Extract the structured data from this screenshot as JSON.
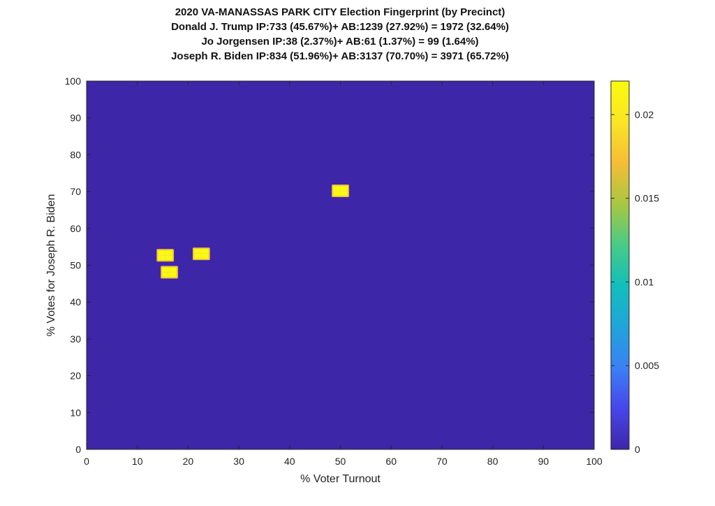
{
  "chart_data": {
    "type": "heatmap",
    "title_lines": [
      "2020 VA-MANASSAS PARK CITY Election Fingerprint (by Precinct)",
      "Donald J. Trump IP:733 (45.67%)+ AB:1239 (27.92%) = 1972 (32.64%)",
      "Jo Jorgensen IP:38 (2.37%)+ AB:61 (1.37%) = 99 (1.64%)",
      "Joseph R. Biden IP:834 (51.96%)+ AB:3137 (70.70%) = 3971 (65.72%)"
    ],
    "xlabel": "% Voter Turnout",
    "ylabel": "% Votes for Joseph R. Biden",
    "xlim": [
      0,
      100
    ],
    "ylim": [
      0,
      100
    ],
    "xticks": [
      0,
      10,
      20,
      30,
      40,
      50,
      60,
      70,
      80,
      90,
      100
    ],
    "yticks": [
      0,
      10,
      20,
      30,
      40,
      50,
      60,
      70,
      80,
      90,
      100
    ],
    "background_value": 0,
    "colorbar": {
      "min": 0,
      "max": 0.022,
      "ticks": [
        0,
        0.005,
        0.01,
        0.015,
        0.02
      ],
      "tick_labels": [
        "0",
        "0.005",
        "0.01",
        "0.015",
        "0.02"
      ],
      "colormap": [
        "#3e26a8",
        "#4746eb",
        "#3a81f5",
        "#1fa5da",
        "#12bebb",
        "#48cb86",
        "#a9c742",
        "#f5bd36",
        "#fae524",
        "#f9fb0e"
      ]
    },
    "points": [
      {
        "x": 15.5,
        "y": 52.7,
        "value": 0.022
      },
      {
        "x": 16.3,
        "y": 48.1,
        "value": 0.022
      },
      {
        "x": 22.6,
        "y": 53.1,
        "value": 0.022
      },
      {
        "x": 50.0,
        "y": 70.2,
        "value": 0.022
      }
    ]
  }
}
